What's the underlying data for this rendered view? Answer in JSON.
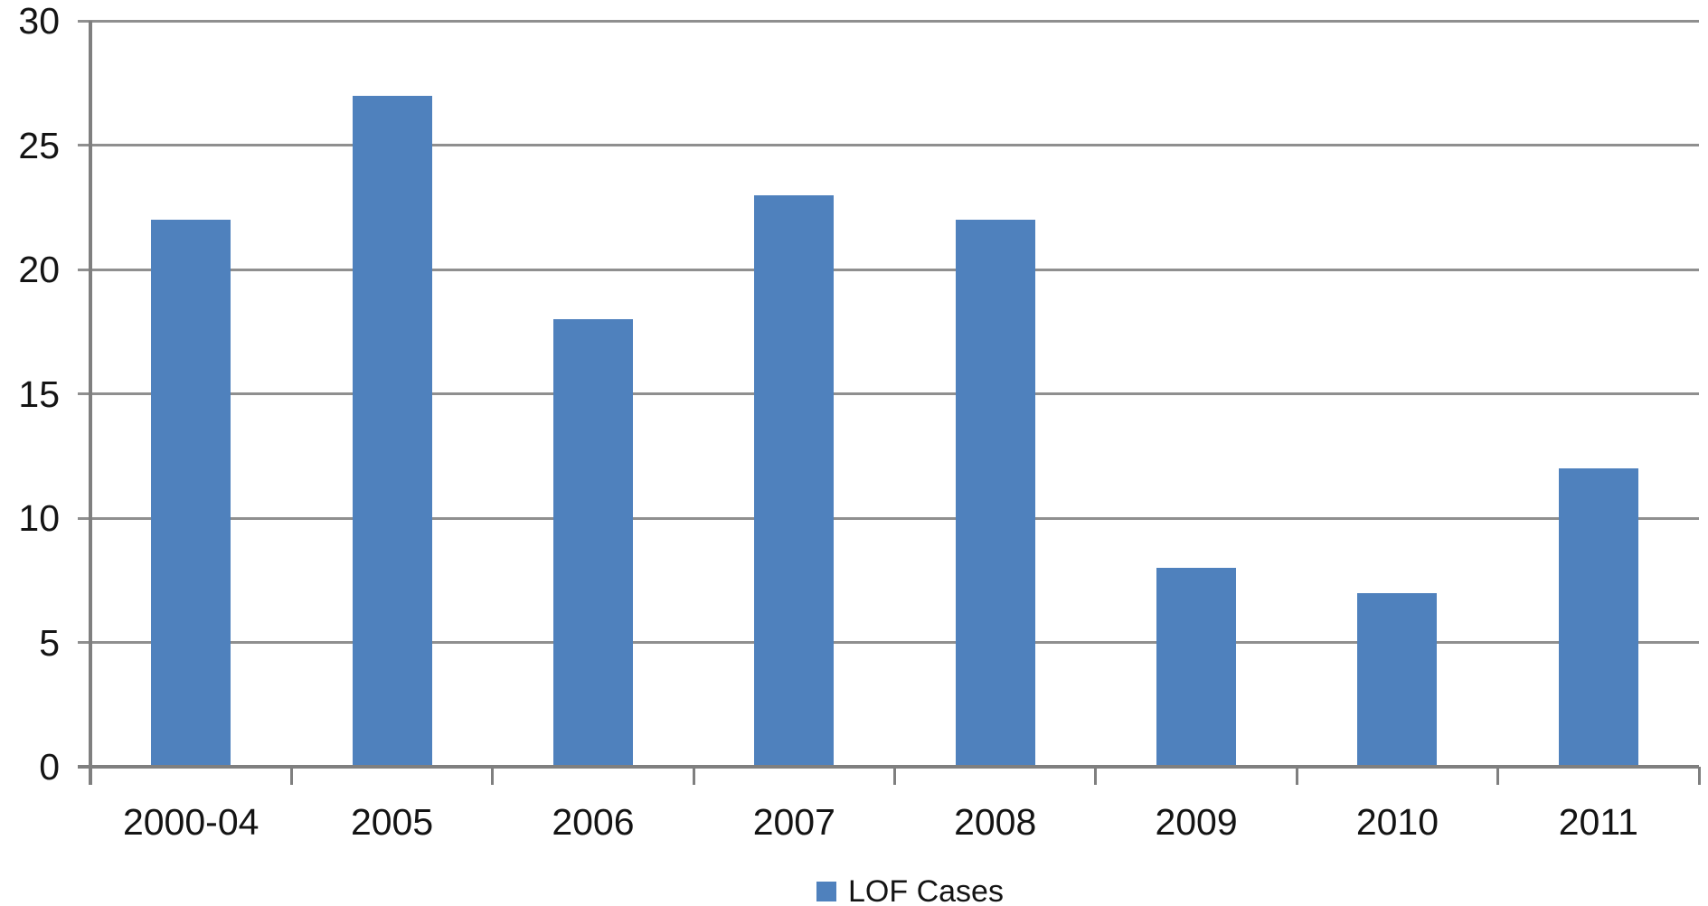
{
  "chart_data": {
    "type": "bar",
    "categories": [
      "2000-04",
      "2005",
      "2006",
      "2007",
      "2008",
      "2009",
      "2010",
      "2011"
    ],
    "series": [
      {
        "name": "LOF Cases",
        "values": [
          22,
          27,
          18,
          23,
          22,
          8,
          7,
          12
        ]
      }
    ],
    "ylim": [
      0,
      30
    ],
    "ytick_step": 5,
    "ytick_labels": [
      "0",
      "5",
      "10",
      "15",
      "20",
      "25",
      "30"
    ],
    "grid": true,
    "legend_position": "bottom-center",
    "colors": {
      "bar": "#4F81BD",
      "gridline": "#8F8F8F",
      "axis": "#7F7F7F",
      "text": "#141414",
      "background": "#FFFFFF"
    }
  }
}
